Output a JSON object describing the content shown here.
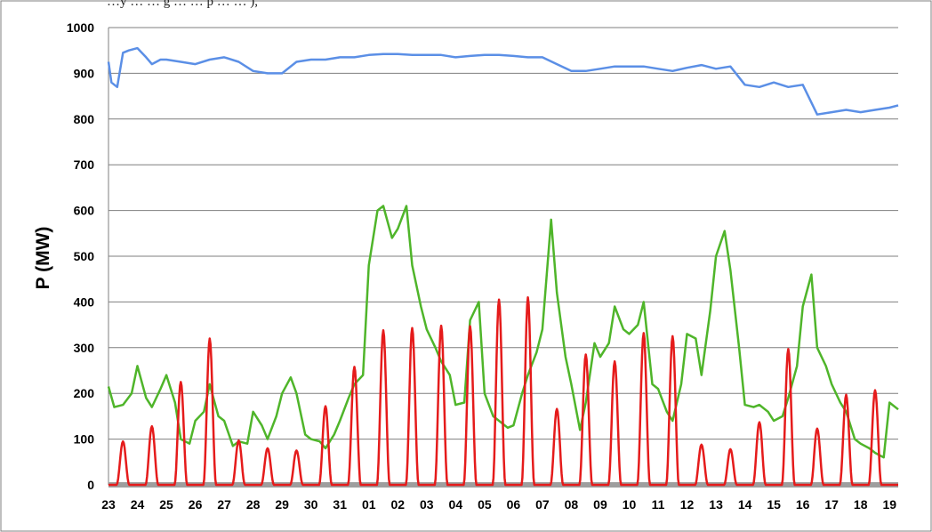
{
  "caption_fragment": "…y … … g … … p … … ),",
  "chart_data": {
    "type": "line",
    "ylabel": "P (MW)",
    "xlabel": "",
    "ylim": [
      0,
      1000
    ],
    "yticks": [
      0,
      100,
      200,
      300,
      400,
      500,
      600,
      700,
      800,
      900,
      1000
    ],
    "xticks": [
      "23",
      "24",
      "25",
      "26",
      "27",
      "28",
      "29",
      "30",
      "31",
      "01",
      "02",
      "03",
      "04",
      "05",
      "06",
      "07",
      "08",
      "09",
      "10",
      "11",
      "12",
      "13",
      "14",
      "15",
      "16",
      "17",
      "18",
      "19"
    ],
    "grid": "horizontal",
    "legend": "none",
    "series": [
      {
        "color": "#5B8FE6",
        "x": [
          0,
          0.1,
          0.3,
          0.5,
          0.7,
          1.0,
          1.3,
          1.5,
          1.8,
          2.0,
          2.5,
          3.0,
          3.5,
          4.0,
          4.5,
          5.0,
          5.5,
          6.0,
          6.5,
          7.0,
          7.5,
          8.0,
          8.5,
          9.0,
          9.5,
          10.0,
          10.5,
          11.0,
          11.5,
          12.0,
          12.5,
          13.0,
          13.5,
          14.0,
          14.5,
          15.0,
          15.5,
          16.0,
          16.5,
          17.0,
          17.5,
          18.0,
          18.5,
          19.0,
          19.5,
          20.0,
          20.5,
          21.0,
          21.5,
          22.0,
          22.5,
          23.0,
          23.5,
          24.0,
          24.5,
          25.0,
          25.5,
          26.0,
          26.5,
          27.0,
          27.3
        ],
        "values": [
          925,
          880,
          870,
          945,
          950,
          955,
          935,
          920,
          930,
          930,
          925,
          920,
          930,
          935,
          925,
          905,
          900,
          900,
          925,
          930,
          930,
          935,
          935,
          940,
          942,
          942,
          940,
          940,
          940,
          935,
          938,
          940,
          940,
          938,
          935,
          935,
          920,
          905,
          905,
          910,
          915,
          915,
          915,
          910,
          905,
          912,
          918,
          910,
          915,
          875,
          870,
          880,
          870,
          875,
          810,
          815,
          820,
          815,
          820,
          825,
          830
        ]
      },
      {
        "color": "#4FB52A",
        "x": [
          0,
          0.2,
          0.5,
          0.8,
          1.0,
          1.3,
          1.5,
          1.8,
          2.0,
          2.3,
          2.5,
          2.8,
          3.0,
          3.3,
          3.5,
          3.8,
          4.0,
          4.3,
          4.5,
          4.8,
          5.0,
          5.3,
          5.5,
          5.8,
          6.0,
          6.3,
          6.5,
          6.8,
          7.0,
          7.3,
          7.5,
          7.8,
          8.0,
          8.3,
          8.5,
          8.8,
          9.0,
          9.3,
          9.5,
          9.8,
          10.0,
          10.3,
          10.5,
          10.8,
          11.0,
          11.3,
          11.5,
          11.8,
          12.0,
          12.3,
          12.5,
          12.8,
          13.0,
          13.3,
          13.5,
          13.8,
          14.0,
          14.3,
          14.5,
          14.8,
          15.0,
          15.3,
          15.5,
          15.8,
          16.0,
          16.3,
          16.5,
          16.8,
          17.0,
          17.3,
          17.5,
          17.8,
          18.0,
          18.3,
          18.5,
          18.8,
          19.0,
          19.3,
          19.5,
          19.8,
          20.0,
          20.3,
          20.5,
          20.8,
          21.0,
          21.3,
          21.5,
          21.8,
          22.0,
          22.3,
          22.5,
          22.8,
          23.0,
          23.3,
          23.5,
          23.8,
          24.0,
          24.3,
          24.5,
          24.8,
          25.0,
          25.3,
          25.5,
          25.8,
          26.0,
          26.3,
          26.5,
          26.8,
          27.0,
          27.3
        ],
        "values": [
          215,
          170,
          175,
          200,
          260,
          190,
          170,
          210,
          240,
          180,
          100,
          90,
          140,
          160,
          220,
          150,
          140,
          85,
          95,
          90,
          160,
          130,
          100,
          150,
          200,
          235,
          200,
          110,
          100,
          95,
          80,
          110,
          140,
          190,
          220,
          240,
          480,
          600,
          610,
          540,
          560,
          610,
          480,
          390,
          340,
          300,
          270,
          240,
          175,
          180,
          360,
          400,
          200,
          150,
          140,
          125,
          130,
          200,
          240,
          290,
          340,
          580,
          420,
          280,
          220,
          120,
          180,
          310,
          280,
          310,
          390,
          340,
          330,
          350,
          400,
          220,
          210,
          160,
          140,
          220,
          330,
          320,
          240,
          380,
          500,
          555,
          470,
          300,
          175,
          170,
          175,
          160,
          140,
          150,
          190,
          260,
          390,
          460,
          300,
          260,
          220,
          180,
          160,
          100,
          90,
          80,
          70,
          60,
          180,
          165
        ]
      },
      {
        "color": "#E51B1B",
        "peaks_x": [
          0.5,
          1.5,
          2.5,
          3.5,
          4.5,
          5.5,
          6.5,
          7.5,
          8.5,
          9.5,
          10.5,
          11.5,
          12.5,
          13.5,
          14.5,
          15.5,
          16.5,
          17.5,
          18.5,
          19.5,
          20.5,
          21.5,
          22.5,
          23.5,
          24.5,
          25.5,
          26.5
        ],
        "peaks_values": [
          95,
          128,
          225,
          320,
          97,
          80,
          75,
          172,
          258,
          338,
          343,
          348,
          347,
          405,
          410,
          166,
          285,
          270,
          332,
          325,
          88,
          78,
          137,
          297,
          123,
          197,
          207
        ]
      },
      {
        "color": "#9E9E9E",
        "x": [
          0,
          27.3
        ],
        "values": [
          0,
          0
        ]
      }
    ]
  }
}
